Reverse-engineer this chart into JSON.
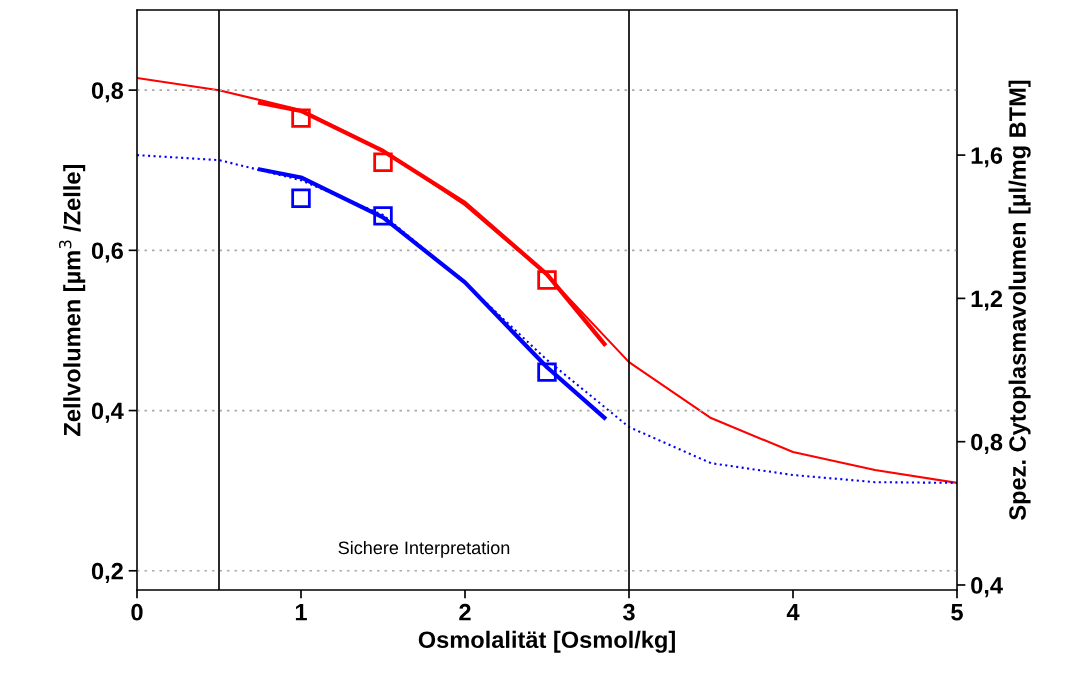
{
  "chart_data": {
    "type": "line",
    "xlabel": "Osmolalität [Osmol/kg]",
    "ylabel": "Zellvolumen [µm$^{3}$ /Zelle]",
    "y2label": "Spez. Cytoplasmavolumen [µl/mg BTM]",
    "xlim": [
      0,
      5
    ],
    "xticks": [
      0,
      1,
      2,
      3,
      4,
      5
    ],
    "ylim": [
      0.176,
      0.9
    ],
    "yticks": [
      {
        "value": 0.2,
        "label": "0,2"
      },
      {
        "value": 0.4,
        "label": "0,4"
      },
      {
        "value": 0.6,
        "label": "0,6"
      },
      {
        "value": 0.8,
        "label": "0,8"
      }
    ],
    "y2lim": [
      0.386,
      2.005
    ],
    "y2ticks": [
      {
        "value": 0.4,
        "label": "0,4"
      },
      {
        "value": 0.8,
        "label": "0,8"
      },
      {
        "value": 1.2,
        "label": "1,2"
      },
      {
        "value": 1.6,
        "label": "1,6"
      }
    ],
    "grid": "y",
    "legend": false,
    "series": [
      {
        "axis": "y2",
        "color": "#ff0000",
        "line_style": "solid",
        "x": [
          0,
          0.5,
          1,
          1.5,
          2,
          2.5,
          3,
          3.5,
          4,
          4.5,
          5
        ],
        "values": [
          1.815,
          1.781,
          1.726,
          1.614,
          1.46,
          1.265,
          1.022,
          0.866,
          0.771,
          0.721,
          0.685
        ]
      },
      {
        "axis": "y2",
        "color": "#0000ff",
        "line_style": "dotted",
        "x": [
          0,
          0.5,
          1,
          1.5,
          2,
          2.5,
          3,
          3.5,
          4,
          4.5,
          5
        ],
        "values": [
          1.6,
          1.586,
          1.53,
          1.433,
          1.243,
          1.028,
          0.841,
          0.74,
          0.707,
          0.687,
          0.685
        ]
      },
      {
        "color": "#ff0000",
        "line_style": "solid",
        "x": [
          0.75,
          1,
          1.5,
          2,
          2.5,
          2.85
        ],
        "values": [
          0.784,
          0.774,
          0.724,
          0.659,
          0.57,
          0.483
        ]
      },
      {
        "color": "#0000ff",
        "line_style": "solid",
        "x": [
          0.75,
          1,
          1.5,
          2,
          2.5,
          2.85
        ],
        "values": [
          0.701,
          0.691,
          0.641,
          0.56,
          0.454,
          0.391
        ]
      },
      {
        "type": "scatter",
        "marker": "square",
        "color": "#ff0000",
        "x": [
          1,
          1.5,
          2.5
        ],
        "values": [
          0.765,
          0.71,
          0.563
        ]
      },
      {
        "type": "scatter",
        "marker": "square",
        "color": "#0000ff",
        "x": [
          1,
          1.5,
          2.5
        ],
        "values": [
          0.665,
          0.643,
          0.448
        ]
      }
    ],
    "ref_lines": [
      {
        "axis": "x",
        "value": 0.5,
        "color": "#000000"
      },
      {
        "axis": "x",
        "value": 3,
        "color": "#000000"
      }
    ],
    "annotations": [
      "Sichere Interpretation"
    ]
  }
}
